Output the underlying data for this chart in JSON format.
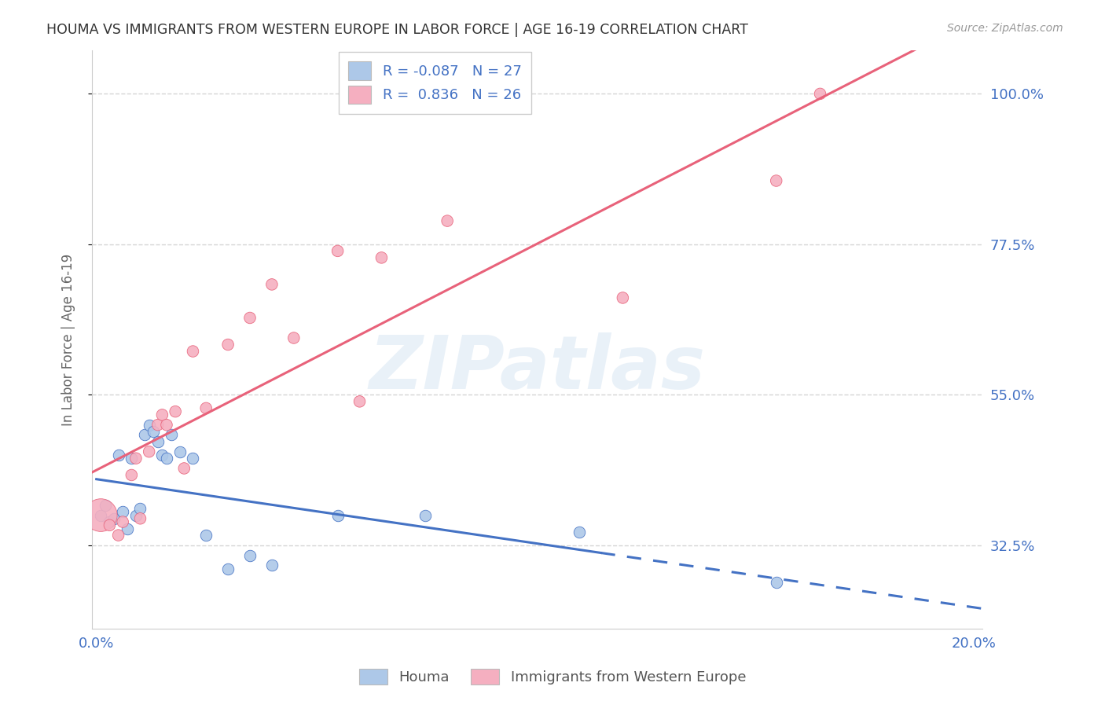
{
  "title": "HOUMA VS IMMIGRANTS FROM WESTERN EUROPE IN LABOR FORCE | AGE 16-19 CORRELATION CHART",
  "source": "Source: ZipAtlas.com",
  "ylabel": "In Labor Force | Age 16-19",
  "xmin": -0.001,
  "xmax": 0.202,
  "ymin": 0.2,
  "ymax": 1.065,
  "yticks": [
    0.325,
    0.55,
    0.775,
    1.0
  ],
  "ytick_labels": [
    "32.5%",
    "55.0%",
    "77.5%",
    "100.0%"
  ],
  "xticks": [
    0.0,
    0.05,
    0.1,
    0.15,
    0.2
  ],
  "xtick_labels": [
    "0.0%",
    "",
    "",
    "",
    "20.0%"
  ],
  "legend_labels": [
    "Houma",
    "Immigrants from Western Europe"
  ],
  "R_houma": -0.087,
  "N_houma": 27,
  "R_immigrants": 0.836,
  "N_immigrants": 26,
  "blue_color": "#adc8e8",
  "pink_color": "#f5afc0",
  "blue_line_color": "#4472c4",
  "pink_line_color": "#e8627a",
  "houma_x": [
    0.001,
    0.002,
    0.003,
    0.004,
    0.005,
    0.006,
    0.007,
    0.008,
    0.009,
    0.01,
    0.011,
    0.012,
    0.013,
    0.014,
    0.015,
    0.016,
    0.017,
    0.019,
    0.022,
    0.025,
    0.03,
    0.035,
    0.04,
    0.055,
    0.075,
    0.11,
    0.155
  ],
  "houma_y": [
    0.37,
    0.385,
    0.36,
    0.365,
    0.46,
    0.375,
    0.35,
    0.455,
    0.37,
    0.38,
    0.49,
    0.505,
    0.495,
    0.48,
    0.46,
    0.455,
    0.49,
    0.465,
    0.455,
    0.34,
    0.29,
    0.31,
    0.295,
    0.37,
    0.37,
    0.345,
    0.27
  ],
  "houma_dot_size": 110,
  "immigrants_x": [
    0.001,
    0.003,
    0.005,
    0.006,
    0.008,
    0.009,
    0.01,
    0.012,
    0.014,
    0.015,
    0.016,
    0.018,
    0.02,
    0.022,
    0.025,
    0.03,
    0.035,
    0.04,
    0.045,
    0.055,
    0.06,
    0.065,
    0.08,
    0.12,
    0.155,
    0.165
  ],
  "immigrants_y": [
    0.37,
    0.355,
    0.34,
    0.36,
    0.43,
    0.455,
    0.365,
    0.465,
    0.505,
    0.52,
    0.505,
    0.525,
    0.44,
    0.615,
    0.53,
    0.625,
    0.665,
    0.715,
    0.635,
    0.765,
    0.54,
    0.755,
    0.81,
    0.695,
    0.87,
    1.0
  ],
  "immigrants_dot_size": 110,
  "immigrants_big_dot_idx": 0,
  "immigrants_big_dot_size": 900,
  "blue_trend_start": 0.0,
  "blue_trend_solid_end": 0.115,
  "blue_trend_dash_end": 0.205,
  "blue_trend_y_at_0": 0.39,
  "blue_trend_slope": -0.45,
  "pink_trend_start": -0.001,
  "pink_trend_end": 0.205,
  "watermark": "ZIPatlas",
  "background_color": "#ffffff",
  "grid_color": "#d5d5d5"
}
